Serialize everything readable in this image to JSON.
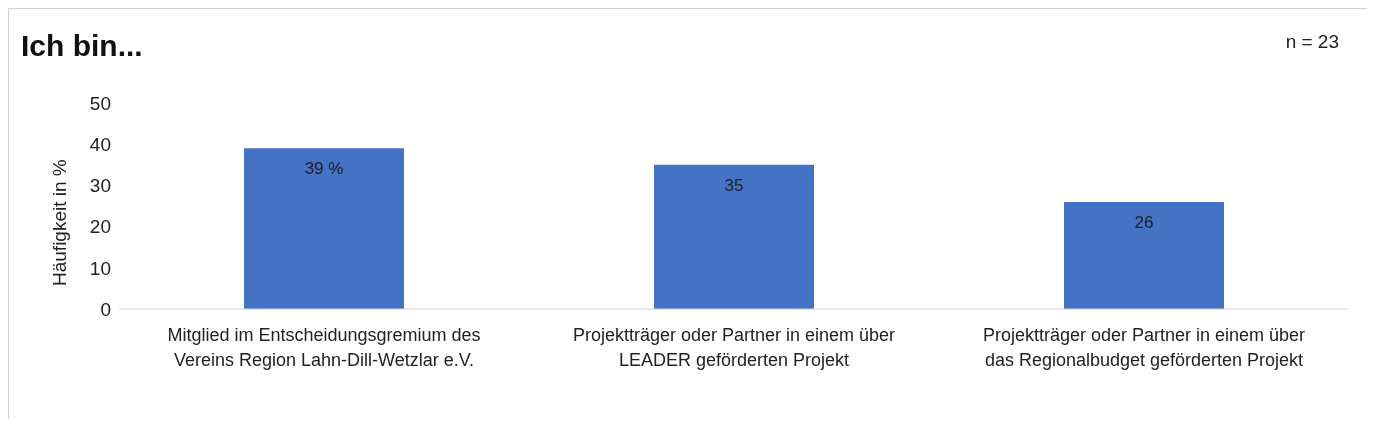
{
  "chart_data": {
    "type": "bar",
    "title": "Ich bin...",
    "ylabel": "Häufigkeit in %",
    "annotations": [
      "n = 23"
    ],
    "categories": [
      "Mitglied im Entscheidungsgremium des Vereins Region Lahn-Dill-Wetzlar e.V.",
      "Projektträger oder Partner in einem über LEADER geförderten Projekt",
      "Projektträger oder Partner in einem über das Regionalbudget geförderten Projekt"
    ],
    "values": [
      39,
      35,
      26
    ],
    "value_labels": [
      "39 %",
      "35",
      "26"
    ],
    "color": "#4472c4",
    "ylim": [
      0,
      50
    ],
    "yticks": [
      0,
      10,
      20,
      30,
      40,
      50
    ],
    "grid": false,
    "legend": false
  }
}
